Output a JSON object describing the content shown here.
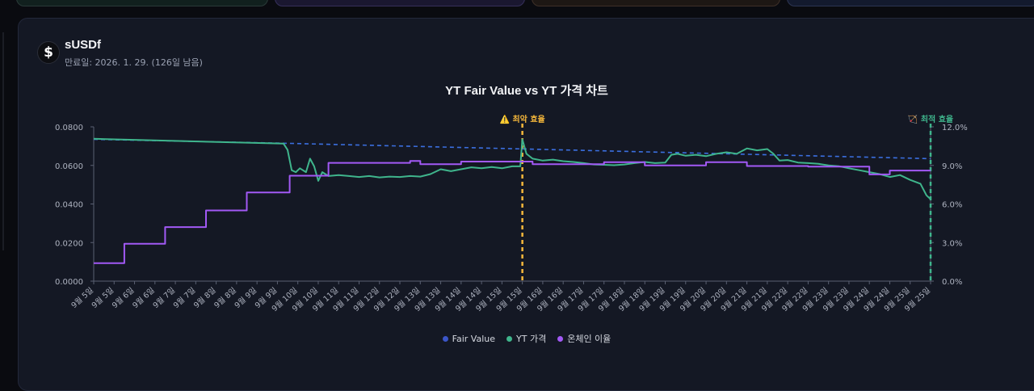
{
  "top_cards": 4,
  "asset": {
    "icon_glyph": "$",
    "name": "sUSDf",
    "subtitle": "만료일: 2026. 1. 29. (126일 남음)"
  },
  "chart_data": {
    "type": "line",
    "title": "YT Fair Value vs YT 가격 차트",
    "x_ticks": [
      "9월 5일",
      "9월 5일",
      "9월 6일",
      "9월 6일",
      "9월 7일",
      "9월 7일",
      "9월 8일",
      "9월 8일",
      "9월 9일",
      "9월 9일",
      "9월 10일",
      "9월 10일",
      "9월 11일",
      "9월 11일",
      "9월 12일",
      "9월 12일",
      "9월 13일",
      "9월 13일",
      "9월 14일",
      "9월 14일",
      "9월 15일",
      "9월 15일",
      "9월 16일",
      "9월 16일",
      "9월 17일",
      "9월 17일",
      "9월 18일",
      "9월 18일",
      "9월 19일",
      "9월 19일",
      "9월 20일",
      "9월 20일",
      "9월 21일",
      "9월 21일",
      "9월 22일",
      "9월 22일",
      "9월 23일",
      "9월 23일",
      "9월 24일",
      "9월 24일",
      "9월 25일",
      "9월 25일"
    ],
    "y_left": {
      "ticks": [
        "0.0800",
        "0.0600",
        "0.0400",
        "0.0200",
        "0.0000"
      ],
      "range": [
        0,
        0.08
      ]
    },
    "y_right": {
      "ticks": [
        "12.0%",
        "9.0%",
        "6.0%",
        "3.0%",
        "0.0%"
      ],
      "range": [
        0,
        12
      ]
    },
    "grid": false,
    "legend_position": "bottom",
    "series": [
      {
        "name": "Fair Value",
        "color": "#3b6fe0",
        "axis": "left",
        "points": [
          [
            0,
            0.0735
          ],
          [
            9.3,
            0.0715
          ],
          [
            41,
            0.0635
          ]
        ]
      },
      {
        "name": "YT 가격",
        "color": "#3fb58c",
        "axis": "left",
        "points": [
          [
            0,
            0.0738
          ],
          [
            9.3,
            0.0713
          ],
          [
            9.5,
            0.068
          ],
          [
            9.7,
            0.0575
          ],
          [
            9.9,
            0.0565
          ],
          [
            10.1,
            0.0585
          ],
          [
            10.4,
            0.0565
          ],
          [
            10.6,
            0.0635
          ],
          [
            10.8,
            0.0595
          ],
          [
            11.0,
            0.052
          ],
          [
            11.2,
            0.0565
          ],
          [
            11.5,
            0.0545
          ],
          [
            12,
            0.055
          ],
          [
            12.5,
            0.0545
          ],
          [
            13,
            0.054
          ],
          [
            13.5,
            0.0545
          ],
          [
            14,
            0.0538
          ],
          [
            14.5,
            0.0542
          ],
          [
            15,
            0.054
          ],
          [
            15.5,
            0.0545
          ],
          [
            16,
            0.0542
          ],
          [
            16.5,
            0.0555
          ],
          [
            17,
            0.058
          ],
          [
            17.5,
            0.057
          ],
          [
            18,
            0.058
          ],
          [
            18.5,
            0.059
          ],
          [
            19,
            0.0585
          ],
          [
            19.5,
            0.0592
          ],
          [
            20,
            0.0585
          ],
          [
            20.5,
            0.0595
          ],
          [
            20.9,
            0.0595
          ],
          [
            21.0,
            0.0735
          ],
          [
            21.2,
            0.066
          ],
          [
            21.5,
            0.0635
          ],
          [
            22,
            0.0625
          ],
          [
            22.5,
            0.063
          ],
          [
            23,
            0.0622
          ],
          [
            23.5,
            0.0618
          ],
          [
            24,
            0.0612
          ],
          [
            24.5,
            0.0605
          ],
          [
            25,
            0.0603
          ],
          [
            25.5,
            0.0601
          ],
          [
            26,
            0.0605
          ],
          [
            26.5,
            0.0612
          ],
          [
            27,
            0.0618
          ],
          [
            27.5,
            0.0612
          ],
          [
            28,
            0.0615
          ],
          [
            28.3,
            0.0655
          ],
          [
            28.6,
            0.066
          ],
          [
            29,
            0.065
          ],
          [
            29.5,
            0.0655
          ],
          [
            30,
            0.0648
          ],
          [
            30.5,
            0.066
          ],
          [
            31,
            0.0668
          ],
          [
            31.5,
            0.066
          ],
          [
            32,
            0.0688
          ],
          [
            32.5,
            0.0678
          ],
          [
            33,
            0.0685
          ],
          [
            33.3,
            0.066
          ],
          [
            33.6,
            0.0625
          ],
          [
            34,
            0.0628
          ],
          [
            34.5,
            0.0615
          ],
          [
            35,
            0.0612
          ],
          [
            35.5,
            0.0608
          ],
          [
            36,
            0.06
          ],
          [
            36.5,
            0.0596
          ],
          [
            37,
            0.0585
          ],
          [
            37.5,
            0.0575
          ],
          [
            38,
            0.0565
          ],
          [
            38.5,
            0.0555
          ],
          [
            39,
            0.054
          ],
          [
            39.5,
            0.055
          ],
          [
            40,
            0.0525
          ],
          [
            40.5,
            0.0505
          ],
          [
            40.8,
            0.0445
          ],
          [
            41,
            0.0425
          ]
        ]
      },
      {
        "name": "온체인 이율",
        "color": "#a259f5",
        "axis": "right",
        "points": [
          [
            0,
            1.4
          ],
          [
            1.5,
            1.4
          ],
          [
            1.5,
            2.9
          ],
          [
            3.5,
            2.9
          ],
          [
            3.5,
            4.2
          ],
          [
            5.5,
            4.2
          ],
          [
            5.5,
            5.5
          ],
          [
            7.5,
            5.5
          ],
          [
            7.5,
            6.9
          ],
          [
            9.6,
            6.9
          ],
          [
            9.6,
            8.2
          ],
          [
            11.5,
            8.2
          ],
          [
            11.5,
            9.2
          ],
          [
            15.5,
            9.2
          ],
          [
            15.5,
            9.35
          ],
          [
            16,
            9.35
          ],
          [
            16,
            9.1
          ],
          [
            18,
            9.1
          ],
          [
            18,
            9.3
          ],
          [
            21.5,
            9.3
          ],
          [
            21.5,
            9.1
          ],
          [
            25,
            9.1
          ],
          [
            25,
            9.25
          ],
          [
            27,
            9.25
          ],
          [
            27,
            9.0
          ],
          [
            30,
            9.0
          ],
          [
            30,
            9.25
          ],
          [
            32,
            9.25
          ],
          [
            32,
            8.95
          ],
          [
            35,
            8.95
          ],
          [
            35,
            8.9
          ],
          [
            38,
            8.9
          ],
          [
            38,
            8.3
          ],
          [
            39,
            8.3
          ],
          [
            39,
            8.6
          ],
          [
            41,
            8.6
          ]
        ]
      }
    ],
    "annotations": [
      {
        "label": "⚠️ 최악 효율",
        "x": 21,
        "color": "#f5b73b"
      },
      {
        "label": "🏹 최적 효율",
        "x": 41,
        "color": "#3fb58c"
      }
    ]
  }
}
